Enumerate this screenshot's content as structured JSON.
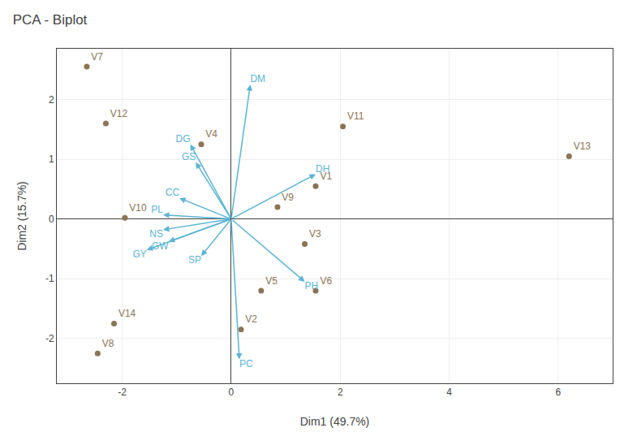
{
  "chart_data": {
    "type": "biplot",
    "title": "PCA - Biplot",
    "xlabel": "Dim1 (49.7%)",
    "ylabel": "Dim2 (15.7%)",
    "xlim": [
      -3.2,
      7.0
    ],
    "ylim": [
      -2.75,
      2.85
    ],
    "xticks": [
      -2,
      0,
      2,
      4,
      6
    ],
    "yticks": [
      -2,
      -1,
      0,
      1,
      2
    ],
    "grid": true,
    "series": [
      {
        "type": "scatter",
        "color": "#8b7355",
        "labels": [
          "V1",
          "V2",
          "V3",
          "V4",
          "V5",
          "V6",
          "V7",
          "V8",
          "V9",
          "V10",
          "V11",
          "V12",
          "V13",
          "V14"
        ],
        "x": [
          1.55,
          0.18,
          1.35,
          -0.55,
          0.55,
          1.55,
          -2.65,
          -2.45,
          0.85,
          -1.95,
          2.05,
          -2.3,
          6.2,
          -2.15
        ],
        "values": [
          0.55,
          -1.85,
          -0.42,
          1.25,
          -1.2,
          -1.2,
          2.55,
          -2.25,
          0.2,
          0.02,
          1.55,
          1.6,
          1.05,
          -1.75
        ]
      },
      {
        "type": "arrow",
        "color": "#5ab4d6",
        "labels": [
          "DM",
          "DH",
          "DG",
          "GS",
          "CC",
          "PL",
          "NS",
          "GW",
          "GY",
          "SP",
          "PH",
          "PC"
        ],
        "x": [
          0.35,
          1.55,
          -0.75,
          -0.65,
          -0.95,
          -1.25,
          -1.25,
          -1.15,
          -1.55,
          -0.55,
          1.35,
          0.15
        ],
        "values": [
          2.25,
          0.75,
          1.25,
          0.95,
          0.35,
          0.07,
          -0.18,
          -0.38,
          -0.52,
          -0.62,
          -1.05,
          -2.35
        ]
      }
    ]
  }
}
